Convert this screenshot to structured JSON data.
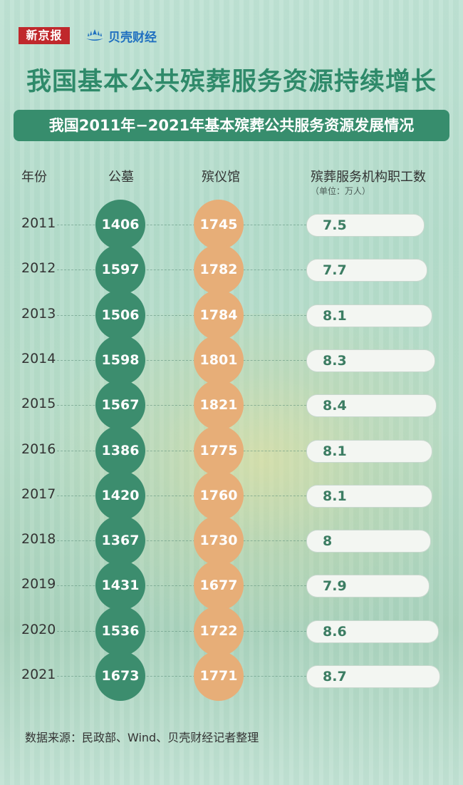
{
  "header": {
    "logo_xinjingbao": "新京报",
    "logo_beike": "贝壳财经",
    "title": "我国基本公共殡葬服务资源持续增长",
    "subtitle": "我国2011年−2021年基本殡葬公共服务资源发展情况"
  },
  "columns": {
    "year": "年份",
    "cemetery": "公墓",
    "funeral_home": "殡仪馆",
    "staff": "殡葬服务机构职工数",
    "staff_unit": "（单位：万人）"
  },
  "colors": {
    "accent_green": "#3c8d6e",
    "accent_orange": "#e7ae78",
    "title_green": "#2f8a6a"
  },
  "chart_data": {
    "type": "table",
    "categories": [
      "2011",
      "2012",
      "2013",
      "2014",
      "2015",
      "2016",
      "2017",
      "2018",
      "2019",
      "2020",
      "2021"
    ],
    "series": [
      {
        "name": "公墓",
        "values": [
          1406,
          1597,
          1506,
          1598,
          1567,
          1386,
          1420,
          1367,
          1431,
          1536,
          1673
        ]
      },
      {
        "name": "殡仪馆",
        "values": [
          1745,
          1782,
          1784,
          1801,
          1821,
          1775,
          1760,
          1730,
          1677,
          1722,
          1771
        ]
      },
      {
        "name": "殡葬服务机构职工数",
        "values": [
          7.5,
          7.7,
          8.1,
          8.3,
          8.4,
          8.1,
          8.1,
          8,
          7.9,
          8.6,
          8.7
        ]
      }
    ]
  },
  "footer": {
    "source": "数据来源：民政部、Wind、贝壳财经记者整理"
  }
}
